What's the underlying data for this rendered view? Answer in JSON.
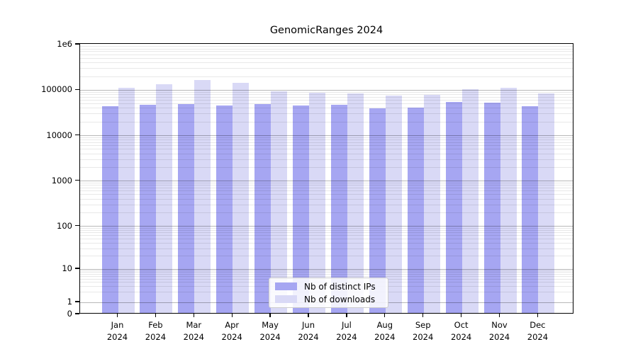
{
  "chart_data": {
    "type": "bar",
    "title": "GenomicRanges 2024",
    "categories": [
      "Jan 2024",
      "Feb 2024",
      "Mar 2024",
      "Apr 2024",
      "May 2024",
      "Jun 2024",
      "Jul 2024",
      "Aug 2024",
      "Sep 2024",
      "Oct 2024",
      "Nov 2024",
      "Dec 2024"
    ],
    "series": [
      {
        "name": "Nb of distinct IPs",
        "color": "#a6a6f2",
        "values": [
          41500,
          44500,
          46000,
          43000,
          46000,
          43000,
          44500,
          37000,
          38300,
          51300,
          49500,
          41500
        ]
      },
      {
        "name": "Nb of downloads",
        "color": "#d9d9f6",
        "values": [
          105000,
          126000,
          156000,
          135000,
          88000,
          83000,
          80000,
          71000,
          74500,
          99000,
          104000,
          78000
        ]
      }
    ],
    "yscale": "log (with 0 baseline)",
    "ylim": [
      0,
      1000000
    ],
    "yticks": [
      0,
      1,
      10,
      100,
      1000,
      10000,
      100000,
      1000000
    ],
    "ytick_labels": [
      "0",
      "1",
      "10",
      "100",
      "1000",
      "10000",
      "100000",
      "1e6"
    ],
    "xlabel": "",
    "ylabel": "",
    "grid": {
      "horizontal_major": true,
      "horizontal_minor": true
    },
    "legend_position": "lower center"
  }
}
